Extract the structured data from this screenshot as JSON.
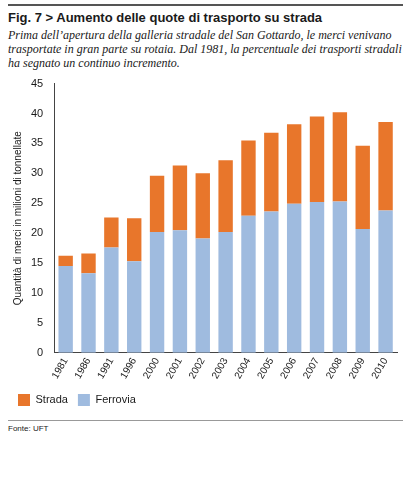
{
  "chart_data": {
    "type": "bar",
    "title": "Fig. 7 > Aumento delle quote di trasporto su strada",
    "subtitle": "Prima dell’apertura della galleria stradale del San Gottardo, le merci venivano trasportate in gran parte su rotaia. Dal 1981, la percentuale dei trasporti stradali ha segnato un continuo incremento.",
    "y_label": "Quantità di merci in milioni di tonnellate",
    "annotations": [
      "Fonte: UFT"
    ],
    "categories": [
      "1981",
      "1986",
      "1991",
      "1996",
      "2000",
      "2001",
      "2002",
      "2003",
      "2004",
      "2005",
      "2006",
      "2007",
      "2008",
      "2009",
      "2010"
    ],
    "series": [
      {
        "name": "Ferrovia",
        "color": "#9fbbdf",
        "values": [
          14.5,
          13.3,
          17.6,
          15.3,
          20.2,
          20.5,
          19.1,
          20.2,
          22.9,
          23.6,
          24.9,
          25.2,
          25.3,
          20.7,
          23.8
        ]
      },
      {
        "name": "Strada",
        "color": "#e8762b",
        "values": [
          1.7,
          3.3,
          5.0,
          7.2,
          9.4,
          10.8,
          10.9,
          12.0,
          12.6,
          13.2,
          13.3,
          14.3,
          14.9,
          13.9,
          14.8
        ]
      }
    ],
    "stacked": true,
    "ylim": [
      0,
      45
    ],
    "yticks": [
      0,
      5,
      10,
      15,
      20,
      25,
      30,
      35,
      40,
      45
    ],
    "grid": false,
    "legend": "bottom"
  }
}
